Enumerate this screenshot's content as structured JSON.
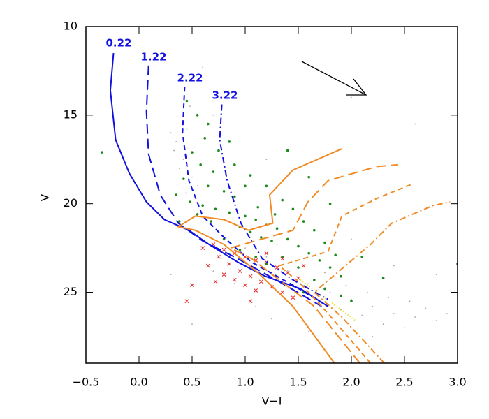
{
  "chart_data": {
    "type": "scatter",
    "xlabel": "V−I",
    "ylabel": "V",
    "annotations": [
      "0.22",
      "1.22",
      "2.22",
      "3.22"
    ],
    "xlim": [
      -0.5,
      3.0
    ],
    "ylim": [
      29,
      10
    ],
    "xticks": [
      {
        "value": -0.5,
        "label": "−0.5"
      },
      {
        "value": 0,
        "label": "0.0"
      },
      0.5,
      {
        "value": 1,
        "label": "1.0"
      },
      1.5,
      {
        "value": 2,
        "label": "2.0"
      },
      2.5,
      {
        "value": 3,
        "label": "3.0"
      }
    ],
    "yticks": [
      10,
      15,
      20,
      25
    ],
    "series": [
      {
        "mode": "markers",
        "marker": "dot",
        "size": 0.9,
        "color": "#aaaaaa",
        "x": [
          0.4,
          0.45,
          0.35,
          0.42,
          0.38,
          0.5,
          0.33,
          0.55,
          0.3,
          0.48,
          0.6,
          0.7,
          0.52,
          0.36,
          0.44,
          1.0,
          1.2,
          1.4,
          1.6,
          1.8,
          2.0,
          2.2,
          2.4,
          2.6,
          2.8,
          1.5,
          1.7,
          1.9,
          2.1,
          2.3,
          2.5,
          2.7,
          2.9,
          1.3,
          1.55,
          1.75,
          1.95,
          2.15,
          2.35,
          2.55,
          1.1,
          0.9,
          0.7,
          1.25,
          0.6,
          0.8,
          2.0,
          2.4,
          2.8,
          0.3,
          0.5,
          1.6,
          2.2,
          2.0,
          2.6,
          1.2
        ],
        "values": [
          13.0,
          15.8,
          16.5,
          17.5,
          18.0,
          18.5,
          17.0,
          19.0,
          16.0,
          14.5,
          13.8,
          15.0,
          16.8,
          18.9,
          19.4,
          22.5,
          23.0,
          23.8,
          24.5,
          25.0,
          25.4,
          25.8,
          26.2,
          26.4,
          26.6,
          25.0,
          25.6,
          26.0,
          26.3,
          26.8,
          27.0,
          25.9,
          26.2,
          22.3,
          23.1,
          23.9,
          24.6,
          25.0,
          25.3,
          25.5,
          25.8,
          24.5,
          23.8,
          26.5,
          12.3,
          14.0,
          22.0,
          23.5,
          24.0,
          24.0,
          26.8,
          27.2,
          27.5,
          14.0,
          15.5,
          17.5
        ]
      },
      {
        "mode": "markers",
        "marker": "dot",
        "size": 1.8,
        "color": "#1a8a1a",
        "x": [
          0.45,
          0.55,
          0.62,
          0.5,
          0.58,
          0.7,
          0.42,
          0.65,
          0.8,
          0.9,
          0.48,
          0.6,
          0.72,
          0.85,
          1.0,
          1.1,
          1.2,
          1.3,
          0.55,
          0.68,
          0.95,
          1.05,
          1.15,
          1.25,
          1.4,
          1.5,
          1.6,
          1.7,
          1.8,
          1.9,
          0.75,
          0.9,
          1.05,
          1.2,
          1.35,
          1.45,
          1.55,
          1.65,
          1.75,
          1.85,
          1.4,
          1.6,
          1.8,
          1.35,
          1.5,
          1.65,
          1.75,
          1.9,
          0.35,
          0.38,
          1.0,
          1.12,
          1.28,
          -0.35,
          2.1,
          2.3,
          0.8,
          0.95,
          1.1,
          1.2,
          0.65,
          0.85,
          2.0,
          1.55,
          3.0
        ],
        "values": [
          14.2,
          15.0,
          16.3,
          17.1,
          17.8,
          18.2,
          18.6,
          19.0,
          19.3,
          19.6,
          19.9,
          20.1,
          20.3,
          20.5,
          20.7,
          20.9,
          21.2,
          21.4,
          20.6,
          21.0,
          21.3,
          21.6,
          21.9,
          22.1,
          22.0,
          22.4,
          22.8,
          23.2,
          23.6,
          24.1,
          17.0,
          17.8,
          18.4,
          19.0,
          19.8,
          20.3,
          21.0,
          21.5,
          22.2,
          22.9,
          17.0,
          18.5,
          20.0,
          23.0,
          23.6,
          24.3,
          24.8,
          25.2,
          19.5,
          21.0,
          19.0,
          20.2,
          20.6,
          17.1,
          23.0,
          24.2,
          22.0,
          22.6,
          23.0,
          23.4,
          15.5,
          16.5,
          25.5,
          25.0,
          23.4
        ]
      },
      {
        "mode": "markers",
        "marker": "x",
        "size": 2.5,
        "color": "#ee2222",
        "x": [
          0.7,
          0.8,
          0.9,
          1.0,
          1.1,
          1.2,
          1.3,
          1.4,
          1.5,
          0.75,
          0.85,
          0.95,
          1.05,
          1.15,
          1.25,
          1.35,
          1.45,
          0.65,
          0.8,
          0.9,
          1.0,
          1.1,
          0.6,
          1.2,
          1.35,
          1.55,
          0.5,
          0.45,
          0.72,
          1.05
        ],
        "values": [
          22.3,
          22.6,
          22.8,
          23.0,
          23.2,
          23.3,
          23.6,
          23.9,
          24.2,
          23.0,
          23.4,
          23.8,
          24.1,
          24.4,
          24.7,
          25.0,
          25.3,
          23.5,
          24.0,
          24.3,
          24.6,
          24.9,
          22.5,
          22.8,
          23.1,
          23.5,
          24.6,
          25.5,
          24.4,
          25.5
        ]
      },
      {
        "mode": "line",
        "dash": "solid",
        "color": "#1010e0",
        "x": [
          -0.24,
          -0.27,
          -0.22,
          -0.09,
          0.07,
          0.24,
          0.47,
          0.66,
          0.93,
          1.19,
          1.52,
          1.78
        ],
        "values": [
          11.5,
          13.6,
          16.4,
          18.3,
          19.9,
          20.9,
          21.5,
          22.3,
          23.3,
          24.1,
          24.8,
          25.8
        ]
      },
      {
        "mode": "line",
        "dash": "longdash",
        "color": "#1010e0",
        "x": [
          0.09,
          0.07,
          0.09,
          0.2,
          0.37,
          0.6,
          0.93,
          1.32,
          1.72
        ],
        "values": [
          12.2,
          14.8,
          17.2,
          19.5,
          21.1,
          22.1,
          23.1,
          24.4,
          25.8
        ]
      },
      {
        "mode": "line",
        "dash": "dash",
        "color": "#1010e0",
        "x": [
          0.43,
          0.41,
          0.47,
          0.6,
          0.8,
          1.06,
          1.45,
          1.78
        ],
        "values": [
          13.4,
          16.0,
          18.7,
          20.7,
          21.9,
          23.3,
          24.6,
          25.8
        ]
      },
      {
        "mode": "line",
        "dash": "dashdot",
        "color": "#1010e0",
        "x": [
          0.78,
          0.76,
          0.83,
          0.96,
          1.16,
          1.45,
          1.78
        ],
        "values": [
          14.4,
          16.4,
          18.7,
          21.1,
          23.1,
          24.3,
          25.4
        ]
      },
      {
        "mode": "line",
        "dash": "solid",
        "color": "#f08a24",
        "x": [
          1.84,
          1.45,
          1.12,
          0.8,
          0.53,
          0.37,
          0.53,
          0.8,
          1.03,
          1.26,
          1.23,
          1.45,
          1.91
        ],
        "values": [
          29,
          25.8,
          23.9,
          22.3,
          21.5,
          21.3,
          20.7,
          20.9,
          21.5,
          21.1,
          19.5,
          18.1,
          16.9
        ]
      },
      {
        "mode": "line",
        "dash": "longdash",
        "color": "#f08a24",
        "x": [
          2.08,
          1.65,
          1.32,
          1.06,
          0.86,
          1.45,
          1.59,
          1.78,
          2.24,
          2.44
        ],
        "values": [
          29,
          25.8,
          24.3,
          23.1,
          22.5,
          21.5,
          19.9,
          18.7,
          17.9,
          17.8
        ]
      },
      {
        "mode": "line",
        "dash": "dash",
        "color": "#f08a24",
        "x": [
          2.18,
          1.78,
          1.52,
          1.32,
          1.78,
          1.91,
          2.24,
          2.57
        ],
        "values": [
          29,
          26.2,
          24.5,
          23.5,
          22.7,
          20.7,
          19.7,
          18.9
        ]
      },
      {
        "mode": "line",
        "dash": "dashdot",
        "color": "#f08a24",
        "x": [
          2.31,
          1.91,
          1.65,
          2.18,
          2.38,
          2.77,
          2.93
        ],
        "values": [
          29,
          26.4,
          25.0,
          22.3,
          21.1,
          20.1,
          19.9
        ]
      },
      {
        "mode": "line",
        "dash": "dot",
        "color": "#dddd00",
        "x": [
          1.52,
          2.04
        ],
        "values": [
          24.3,
          26.6
        ]
      }
    ]
  }
}
